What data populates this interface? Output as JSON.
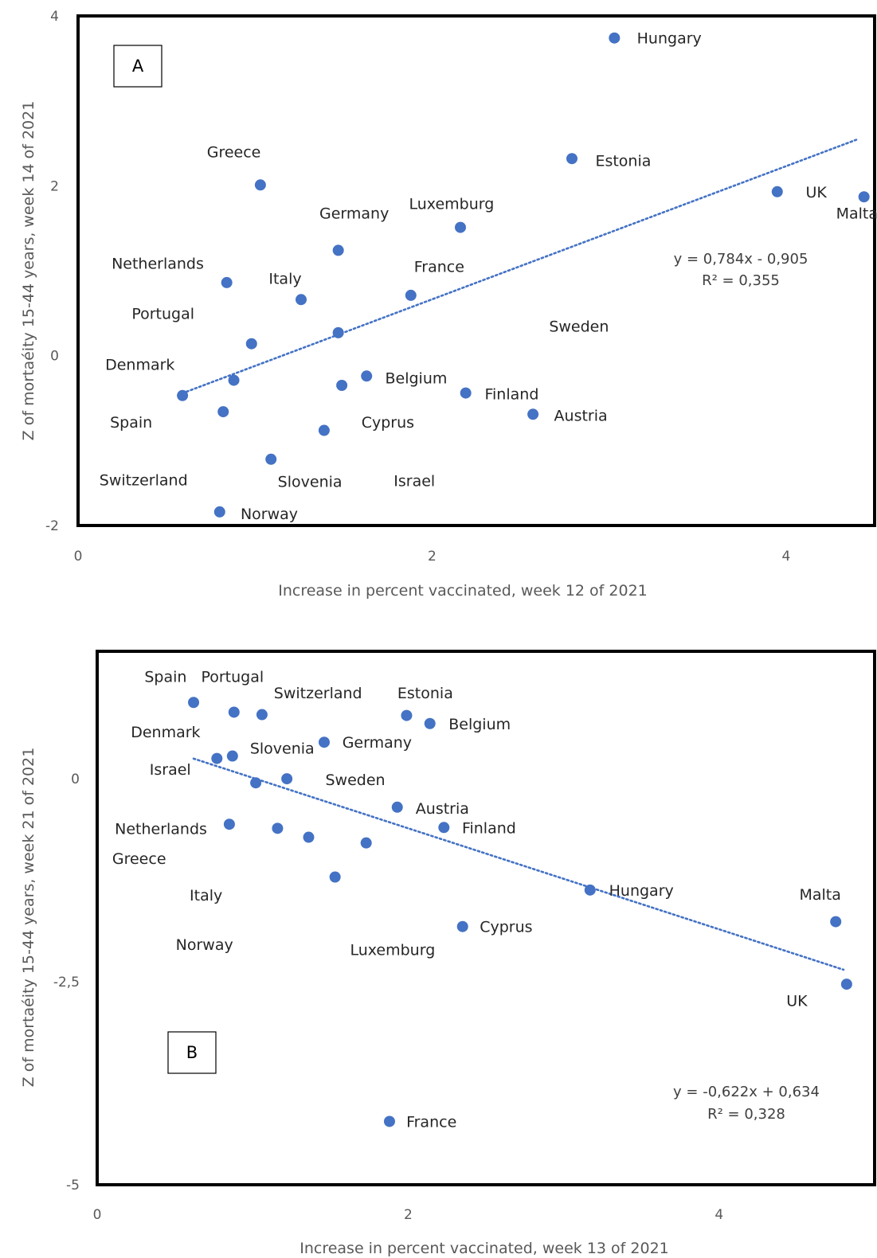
{
  "chart_data": [
    {
      "type": "scatter",
      "panel_label": "A",
      "xlabel": "Increase in percent vaccinated, week 12 of 2021",
      "ylabel": "Z of mortaéity 15-44 years, week 14 of 2021",
      "xlim": [
        0,
        4.5
      ],
      "ylim": [
        -2,
        4
      ],
      "x_ticks": [
        "0",
        "2",
        "4"
      ],
      "y_ticks": [
        "-2",
        "0",
        "2",
        "4"
      ],
      "grid": false,
      "marker_color": "#4472c4",
      "points": [
        {
          "x": 3.03,
          "y": 3.74
        },
        {
          "x": 2.79,
          "y": 2.32
        },
        {
          "x": 1.03,
          "y": 2.01
        },
        {
          "x": 3.95,
          "y": 1.93
        },
        {
          "x": 4.44,
          "y": 1.87
        },
        {
          "x": 2.16,
          "y": 1.51
        },
        {
          "x": 1.47,
          "y": 1.24
        },
        {
          "x": 0.84,
          "y": 0.86
        },
        {
          "x": 1.88,
          "y": 0.71
        },
        {
          "x": 1.26,
          "y": 0.66
        },
        {
          "x": 1.47,
          "y": 0.27
        },
        {
          "x": 0.98,
          "y": 0.14
        },
        {
          "x": 1.63,
          "y": -0.24
        },
        {
          "x": 0.88,
          "y": -0.29
        },
        {
          "x": 1.49,
          "y": -0.35
        },
        {
          "x": 2.19,
          "y": -0.44
        },
        {
          "x": 0.59,
          "y": -0.47
        },
        {
          "x": 0.82,
          "y": -0.66
        },
        {
          "x": 2.57,
          "y": -0.69
        },
        {
          "x": 1.39,
          "y": -0.88
        },
        {
          "x": 1.09,
          "y": -1.22
        },
        {
          "x": 0.8,
          "y": -1.84
        }
      ],
      "point_labels": [
        {
          "text": "Hungary",
          "x": 3.34,
          "y": 3.74
        },
        {
          "text": "Estonia",
          "x": 3.08,
          "y": 2.3
        },
        {
          "text": "Greece",
          "x": 0.88,
          "y": 2.4
        },
        {
          "text": "UK",
          "x": 4.17,
          "y": 1.93
        },
        {
          "text": "Malta",
          "x": 4.4,
          "y": 1.68
        },
        {
          "text": "Luxemburg",
          "x": 2.11,
          "y": 1.79
        },
        {
          "text": "Germany",
          "x": 1.56,
          "y": 1.68
        },
        {
          "text": "Netherlands",
          "x": 0.45,
          "y": 1.09
        },
        {
          "text": "France",
          "x": 2.04,
          "y": 1.05
        },
        {
          "text": "Italy",
          "x": 1.17,
          "y": 0.91
        },
        {
          "text": "Portugal",
          "x": 0.48,
          "y": 0.5
        },
        {
          "text": "Sweden",
          "x": 2.83,
          "y": 0.35
        },
        {
          "text": "Denmark",
          "x": 0.35,
          "y": -0.1
        },
        {
          "text": "Belgium",
          "x": 1.91,
          "y": -0.26
        },
        {
          "text": "Finland",
          "x": 2.45,
          "y": -0.45
        },
        {
          "text": "Austria",
          "x": 2.84,
          "y": -0.7
        },
        {
          "text": "Spain",
          "x": 0.3,
          "y": -0.78
        },
        {
          "text": "Cyprus",
          "x": 1.75,
          "y": -0.78
        },
        {
          "text": "Switzerland",
          "x": 0.37,
          "y": -1.46
        },
        {
          "text": "Slovenia",
          "x": 1.31,
          "y": -1.48
        },
        {
          "text": "Israel",
          "x": 1.9,
          "y": -1.47
        },
        {
          "text": "Norway",
          "x": 1.08,
          "y": -1.86
        }
      ],
      "trendline": {
        "x_start": 0.59,
        "x_end": 4.4,
        "color": "#4472c4"
      },
      "equation": "y = 0,784x - 0,905",
      "r_squared": "R² = 0,355"
    },
    {
      "type": "scatter",
      "panel_label": "B",
      "xlabel": "Increase in percent vaccinated, week 13 of 2021",
      "ylabel": "Z of mortaéity 15-44 years, week 21 of 2021",
      "xlim": [
        0,
        5
      ],
      "ylim": [
        -5,
        1.57
      ],
      "x_ticks": [
        "0",
        "2",
        "4"
      ],
      "y_ticks": [
        "-5",
        "-2,5",
        "0"
      ],
      "grid": false,
      "marker_color": "#4472c4",
      "points": [
        {
          "x": 0.62,
          "y": 0.94
        },
        {
          "x": 0.88,
          "y": 0.82
        },
        {
          "x": 1.06,
          "y": 0.79
        },
        {
          "x": 1.99,
          "y": 0.78
        },
        {
          "x": 2.14,
          "y": 0.68
        },
        {
          "x": 1.46,
          "y": 0.45
        },
        {
          "x": 0.77,
          "y": 0.25
        },
        {
          "x": 0.87,
          "y": 0.28
        },
        {
          "x": 1.02,
          "y": -0.05
        },
        {
          "x": 1.22,
          "y": 0.0
        },
        {
          "x": 1.93,
          "y": -0.35
        },
        {
          "x": 0.85,
          "y": -0.56
        },
        {
          "x": 1.16,
          "y": -0.61
        },
        {
          "x": 2.23,
          "y": -0.6
        },
        {
          "x": 1.36,
          "y": -0.72
        },
        {
          "x": 1.73,
          "y": -0.79
        },
        {
          "x": 1.53,
          "y": -1.21
        },
        {
          "x": 3.17,
          "y": -1.37
        },
        {
          "x": 4.75,
          "y": -1.76
        },
        {
          "x": 2.35,
          "y": -1.82
        },
        {
          "x": 4.82,
          "y": -2.53
        },
        {
          "x": 1.88,
          "y": -4.22
        }
      ],
      "point_labels": [
        {
          "text": "Spain",
          "x": 0.44,
          "y": 1.26
        },
        {
          "text": "Portugal",
          "x": 0.87,
          "y": 1.26
        },
        {
          "text": "Switzerland",
          "x": 1.42,
          "y": 1.06
        },
        {
          "text": "Estonia",
          "x": 2.11,
          "y": 1.06
        },
        {
          "text": "Belgium",
          "x": 2.46,
          "y": 0.68
        },
        {
          "text": "Denmark",
          "x": 0.44,
          "y": 0.58
        },
        {
          "text": "Slovenia",
          "x": 1.19,
          "y": 0.38
        },
        {
          "text": "Germany",
          "x": 1.8,
          "y": 0.45
        },
        {
          "text": "Israel",
          "x": 0.47,
          "y": 0.12
        },
        {
          "text": "Sweden",
          "x": 1.66,
          "y": -0.01
        },
        {
          "text": "Austria",
          "x": 2.22,
          "y": -0.36
        },
        {
          "text": "Netherlands",
          "x": 0.41,
          "y": -0.61
        },
        {
          "text": "Finland",
          "x": 2.52,
          "y": -0.6
        },
        {
          "text": "Greece",
          "x": 0.27,
          "y": -0.98
        },
        {
          "text": "Italy",
          "x": 0.7,
          "y": -1.43
        },
        {
          "text": "Hungary",
          "x": 3.5,
          "y": -1.37
        },
        {
          "text": "Malta",
          "x": 4.65,
          "y": -1.42
        },
        {
          "text": "Cyprus",
          "x": 2.63,
          "y": -1.82
        },
        {
          "text": "Norway",
          "x": 0.69,
          "y": -2.04
        },
        {
          "text": "Luxemburg",
          "x": 1.9,
          "y": -2.1
        },
        {
          "text": "UK",
          "x": 4.5,
          "y": -2.73
        },
        {
          "text": "France",
          "x": 2.15,
          "y": -4.22
        }
      ],
      "trendline": {
        "x_start": 0.62,
        "x_end": 4.8,
        "color": "#4472c4"
      },
      "equation": "y = -0,622x + 0,634",
      "r_squared": "R² = 0,328"
    }
  ]
}
